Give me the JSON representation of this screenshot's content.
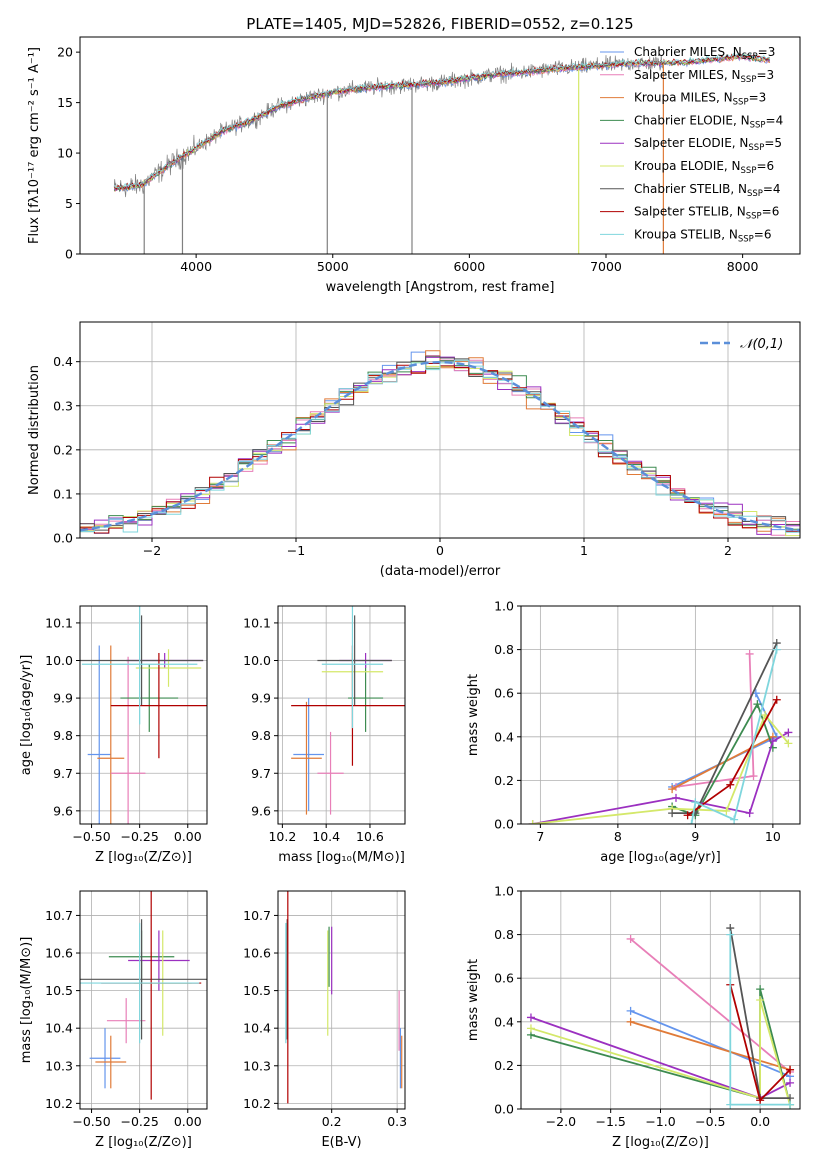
{
  "figure_title": "PLATE=1405, MJD=52826, FIBERID=0552, z=0.125",
  "colors": {
    "Chabrier MILES": "#6495ed",
    "Salpeter MILES": "#e87fb8",
    "Kroupa MILES": "#e07b39",
    "Chabrier ELODIE": "#3d8b50",
    "Salpeter ELODIE": "#9b30c0",
    "Kroupa ELODIE": "#d4e86a",
    "Chabrier STELIB": "#555555",
    "Salpeter STELIB": "#b00000",
    "Kroupa STELIB": "#7fd6dd",
    "data": "#808080",
    "normal": "#5b8fd9"
  },
  "legend_entries": [
    {
      "name": "Chabrier MILES",
      "text": "Chabrier MILES, N",
      "sub": "SSP",
      "tail": "=3"
    },
    {
      "name": "Salpeter MILES",
      "text": "Salpeter MILES, N",
      "sub": "SSP",
      "tail": "=3"
    },
    {
      "name": "Kroupa MILES",
      "text": "Kroupa MILES, N",
      "sub": "SSP",
      "tail": "=3"
    },
    {
      "name": "Chabrier ELODIE",
      "text": "Chabrier ELODIE, N",
      "sub": "SSP",
      "tail": "=4"
    },
    {
      "name": "Salpeter ELODIE",
      "text": "Salpeter ELODIE, N",
      "sub": "SSP",
      "tail": "=5"
    },
    {
      "name": "Kroupa ELODIE",
      "text": "Kroupa ELODIE, N",
      "sub": "SSP",
      "tail": "=6"
    },
    {
      "name": "Chabrier STELIB",
      "text": "Chabrier STELIB, N",
      "sub": "SSP",
      "tail": "=4"
    },
    {
      "name": "Salpeter STELIB",
      "text": "Salpeter STELIB, N",
      "sub": "SSP",
      "tail": "=6"
    },
    {
      "name": "Kroupa STELIB",
      "text": "Kroupa STELIB, N",
      "sub": "SSP",
      "tail": "=6"
    }
  ],
  "chart_data": [
    {
      "id": "spectrum",
      "type": "line",
      "xlabel": "wavelength [Angstrom, rest frame]",
      "ylabel": "Flux [fλ10⁻¹⁷ erg cm⁻² s⁻¹ A⁻¹]",
      "xlim": [
        3150,
        8420
      ],
      "ylim": [
        0,
        21.5
      ],
      "xticks": [
        4000,
        5000,
        6000,
        7000,
        8000
      ],
      "yticks": [
        0,
        5,
        10,
        15,
        20
      ],
      "continuum": [
        [
          3400,
          6.5
        ],
        [
          3600,
          6.8
        ],
        [
          3800,
          8.8
        ],
        [
          4000,
          10.5
        ],
        [
          4200,
          12.2
        ],
        [
          4400,
          13.2
        ],
        [
          4600,
          14.6
        ],
        [
          4800,
          15.4
        ],
        [
          5000,
          16.0
        ],
        [
          5200,
          16.4
        ],
        [
          5400,
          16.6
        ],
        [
          5600,
          16.8
        ],
        [
          5800,
          17.0
        ],
        [
          6000,
          17.4
        ],
        [
          6200,
          17.8
        ],
        [
          6400,
          18.0
        ],
        [
          6600,
          18.3
        ],
        [
          6800,
          18.5
        ],
        [
          7000,
          18.7
        ],
        [
          7200,
          18.9
        ],
        [
          7400,
          18.9
        ],
        [
          7600,
          19.0
        ],
        [
          7800,
          19.3
        ],
        [
          8000,
          19.6
        ],
        [
          8200,
          19.2
        ]
      ],
      "data_range": [
        3400,
        7420
      ],
      "models_range": [
        3400,
        8200
      ],
      "grid": false,
      "legend": "upper right"
    },
    {
      "id": "residuals",
      "type": "histogram",
      "xlabel": "(data-model)/error",
      "ylabel": "Normed distribution",
      "xlim": [
        -2.5,
        2.5
      ],
      "ylim": [
        0,
        0.49
      ],
      "xticks": [
        -2,
        -1,
        0,
        1,
        2
      ],
      "yticks": [
        0,
        0.1,
        0.2,
        0.3,
        0.4
      ],
      "bin_width": 0.1,
      "normal_label": "𝒩(0,1)",
      "grid": true,
      "legend": "upper right"
    },
    {
      "id": "age_vs_Z",
      "type": "errorbar",
      "xlabel": "Z [log₁₀(Z/Z⊙)]",
      "ylabel": "age  [log₁₀(age/yr)]",
      "xlim": [
        -0.56,
        0.1
      ],
      "ylim": [
        9.565,
        10.145
      ],
      "xticks": [
        -0.5,
        -0.25,
        0.0
      ],
      "yticks": [
        9.6,
        9.7,
        9.8,
        9.9,
        10.0,
        10.1
      ],
      "points": [
        {
          "series": "Chabrier MILES",
          "x": -0.46,
          "xerr": 0.06,
          "y": 9.75,
          "yerr": 0.29
        },
        {
          "series": "Kroupa MILES",
          "x": -0.4,
          "xerr": 0.07,
          "y": 9.74,
          "yerr": 0.3
        },
        {
          "series": "Salpeter MILES",
          "x": -0.31,
          "xerr": 0.09,
          "y": 9.7,
          "yerr": 0.31
        },
        {
          "series": "Chabrier ELODIE",
          "x": -0.2,
          "xerr": 0.15,
          "y": 9.9,
          "yerr": 0.09
        },
        {
          "series": "Salpeter ELODIE",
          "x": -0.12,
          "xerr": 0.2,
          "y": 10.0,
          "yerr": 0.02
        },
        {
          "series": "Kroupa ELODIE",
          "x": -0.1,
          "xerr": 0.17,
          "y": 9.98,
          "yerr": 0.05
        },
        {
          "series": "Chabrier STELIB",
          "x": -0.24,
          "xerr": 0.32,
          "y": 10.0,
          "yerr": 0.12
        },
        {
          "series": "Salpeter STELIB",
          "x": -0.15,
          "xerr": 0.25,
          "y": 9.88,
          "yerr": 0.14
        },
        {
          "series": "Kroupa STELIB",
          "x": -0.25,
          "xerr": 0.3,
          "y": 9.99,
          "yerr": 0.16
        }
      ],
      "grid": true
    },
    {
      "id": "age_vs_mass",
      "type": "errorbar",
      "xlabel": "mass [log₁₀(M/M⊙)]",
      "ylabel": "",
      "xlim": [
        10.18,
        10.76
      ],
      "ylim": [
        9.565,
        10.145
      ],
      "xticks": [
        10.2,
        10.4,
        10.6
      ],
      "yticks": [
        9.6,
        9.7,
        9.8,
        9.9,
        10.0,
        10.1
      ],
      "points": [
        {
          "series": "Chabrier MILES",
          "x": 10.32,
          "xerr": 0.07,
          "y": 9.75,
          "yerr": 0.15
        },
        {
          "series": "Kroupa MILES",
          "x": 10.31,
          "xerr": 0.07,
          "y": 9.74,
          "yerr": 0.15
        },
        {
          "series": "Salpeter MILES",
          "x": 10.42,
          "xerr": 0.06,
          "y": 9.7,
          "yerr": 0.11
        },
        {
          "series": "Chabrier ELODIE",
          "x": 10.58,
          "xerr": 0.08,
          "y": 9.9,
          "yerr": 0.09
        },
        {
          "series": "Salpeter ELODIE",
          "x": 10.58,
          "xerr": 0.12,
          "y": 10.0,
          "yerr": 0.02
        },
        {
          "series": "Kroupa ELODIE",
          "x": 10.52,
          "xerr": 0.14,
          "y": 9.97,
          "yerr": 0.05
        },
        {
          "series": "Chabrier STELIB",
          "x": 10.53,
          "xerr": 0.17,
          "y": 10.0,
          "yerr": 0.12
        },
        {
          "series": "Salpeter STELIB",
          "x": 10.52,
          "xerr": 0.28,
          "y": 9.88,
          "yerr": 0.16
        },
        {
          "series": "Kroupa STELIB",
          "x": 10.52,
          "xerr": 0.14,
          "y": 9.99,
          "yerr": 0.17
        }
      ],
      "grid": true
    },
    {
      "id": "weight_vs_age",
      "type": "line",
      "xlabel": "age  [log₁₀(age/yr)]",
      "ylabel": "mass weight",
      "xlim": [
        6.75,
        10.35
      ],
      "ylim": [
        0,
        1.0
      ],
      "xticks": [
        7,
        8,
        9,
        10
      ],
      "yticks": [
        0,
        0.2,
        0.4,
        0.6,
        0.8,
        1.0
      ],
      "series": [
        {
          "name": "Chabrier MILES",
          "points": [
            [
              8.7,
              0.17
            ],
            [
              10.05,
              0.4
            ],
            [
              9.78,
              0.6
            ]
          ]
        },
        {
          "name": "Salpeter MILES",
          "points": [
            [
              9.7,
              0.78
            ],
            [
              9.75,
              0.22
            ],
            [
              8.75,
              0.17
            ]
          ]
        },
        {
          "name": "Kroupa MILES",
          "points": [
            [
              8.7,
              0.16
            ],
            [
              10.0,
              0.4
            ]
          ]
        },
        {
          "name": "Chabrier ELODIE",
          "points": [
            [
              8.7,
              0.08
            ],
            [
              9.0,
              0.04
            ],
            [
              9.8,
              0.55
            ],
            [
              10.0,
              0.35
            ]
          ]
        },
        {
          "name": "Salpeter ELODIE",
          "points": [
            [
              6.9,
              0.0
            ],
            [
              8.75,
              0.12
            ],
            [
              9.7,
              0.05
            ],
            [
              10.0,
              0.38
            ],
            [
              10.2,
              0.42
            ]
          ]
        },
        {
          "name": "Kroupa ELODIE",
          "points": [
            [
              6.9,
              0.0
            ],
            [
              8.7,
              0.07
            ],
            [
              9.4,
              0.06
            ],
            [
              9.9,
              0.5
            ],
            [
              10.2,
              0.37
            ]
          ]
        },
        {
          "name": "Chabrier STELIB",
          "points": [
            [
              8.7,
              0.05
            ],
            [
              9.0,
              0.05
            ],
            [
              10.05,
              0.83
            ]
          ]
        },
        {
          "name": "Salpeter STELIB",
          "points": [
            [
              8.9,
              0.04
            ],
            [
              9.45,
              0.18
            ],
            [
              10.05,
              0.57
            ]
          ]
        },
        {
          "name": "Kroupa STELIB",
          "points": [
            [
              8.95,
              0.0
            ],
            [
              9.0,
              0.1
            ],
            [
              9.5,
              0.02
            ],
            [
              10.05,
              0.8
            ]
          ]
        }
      ],
      "grid": true
    },
    {
      "id": "mass_vs_Z",
      "type": "errorbar",
      "xlabel": "Z [log₁₀(Z/Z⊙)]",
      "ylabel": "mass [log₁₀(M/M⊙)]",
      "xlim": [
        -0.56,
        0.1
      ],
      "ylim": [
        10.185,
        10.765
      ],
      "xticks": [
        -0.5,
        -0.25,
        0.0
      ],
      "yticks": [
        10.2,
        10.3,
        10.4,
        10.5,
        10.6,
        10.7
      ],
      "points": [
        {
          "series": "Chabrier MILES",
          "x": -0.43,
          "xerr": 0.08,
          "y": 10.32,
          "yerr": 0.08
        },
        {
          "series": "Kroupa MILES",
          "x": -0.4,
          "xerr": 0.08,
          "y": 10.31,
          "yerr": 0.07
        },
        {
          "series": "Salpeter MILES",
          "x": -0.32,
          "xerr": 0.1,
          "y": 10.42,
          "yerr": 0.06
        },
        {
          "series": "Chabrier ELODIE",
          "x": -0.24,
          "xerr": 0.17,
          "y": 10.59,
          "yerr": 0.07
        },
        {
          "series": "Salpeter ELODIE",
          "x": -0.15,
          "xerr": 0.16,
          "y": 10.58,
          "yerr": 0.08
        },
        {
          "series": "Kroupa ELODIE",
          "x": -0.13,
          "xerr": 0.15,
          "y": 10.52,
          "yerr": 0.14
        },
        {
          "series": "Chabrier STELIB",
          "x": -0.24,
          "xerr": 0.34,
          "y": 10.53,
          "yerr": 0.16
        },
        {
          "series": "Salpeter STELIB",
          "x": -0.19,
          "xerr": 0.26,
          "y": 10.52,
          "yerr": 0.31
        },
        {
          "series": "Kroupa STELIB",
          "x": -0.25,
          "xerr": 0.31,
          "y": 10.52,
          "yerr": 0.16
        }
      ],
      "grid": true
    },
    {
      "id": "mass_vs_ebv",
      "type": "errorbar",
      "xlabel": "E(B-V)",
      "ylabel": "",
      "xlim": [
        0.118,
        0.312
      ],
      "ylim": [
        10.185,
        10.765
      ],
      "xticks": [
        0.2,
        0.3
      ],
      "yticks": [
        10.2,
        10.3,
        10.4,
        10.5,
        10.6,
        10.7
      ],
      "points": [
        {
          "series": "Chabrier MILES",
          "x": 0.305,
          "xerr": 0,
          "y": 10.32,
          "yerr": 0.08
        },
        {
          "series": "Kroupa MILES",
          "x": 0.307,
          "xerr": 0,
          "y": 10.31,
          "yerr": 0.07
        },
        {
          "series": "Salpeter MILES",
          "x": 0.303,
          "xerr": 0,
          "y": 10.42,
          "yerr": 0.08
        },
        {
          "series": "Chabrier ELODIE",
          "x": 0.196,
          "xerr": 0,
          "y": 10.59,
          "yerr": 0.08
        },
        {
          "series": "Salpeter ELODIE",
          "x": 0.2,
          "xerr": 0,
          "y": 10.58,
          "yerr": 0.09
        },
        {
          "series": "Kroupa ELODIE",
          "x": 0.194,
          "xerr": 0,
          "y": 10.52,
          "yerr": 0.14
        },
        {
          "series": "Chabrier STELIB",
          "x": 0.132,
          "xerr": 0,
          "y": 10.53,
          "yerr": 0.16
        },
        {
          "series": "Salpeter STELIB",
          "x": 0.133,
          "xerr": 0,
          "y": 10.52,
          "yerr": 0.32
        },
        {
          "series": "Kroupa STELIB",
          "x": 0.13,
          "xerr": 0,
          "y": 10.52,
          "yerr": 0.16
        }
      ],
      "grid": true
    },
    {
      "id": "weight_vs_Z",
      "type": "line",
      "xlabel": "Z [log₁₀(Z/Z⊙)]",
      "ylabel": "mass weight",
      "xlim": [
        -2.4,
        0.4
      ],
      "ylim": [
        0,
        1.0
      ],
      "xticks": [
        -2.0,
        -1.5,
        -1.0,
        -0.5,
        0.0
      ],
      "yticks": [
        0,
        0.2,
        0.4,
        0.6,
        0.8,
        1.0
      ],
      "series": [
        {
          "name": "Chabrier MILES",
          "points": [
            [
              -1.3,
              0.45
            ],
            [
              0.3,
              0.15
            ]
          ]
        },
        {
          "name": "Salpeter MILES",
          "points": [
            [
              -1.3,
              0.78
            ],
            [
              0.3,
              0.17
            ]
          ]
        },
        {
          "name": "Kroupa MILES",
          "points": [
            [
              -1.3,
              0.4
            ],
            [
              0.3,
              0.18
            ]
          ]
        },
        {
          "name": "Chabrier ELODIE",
          "points": [
            [
              -2.3,
              0.34
            ],
            [
              0.0,
              0.05
            ],
            [
              0.0,
              0.55
            ],
            [
              0.3,
              0.02
            ]
          ]
        },
        {
          "name": "Salpeter ELODIE",
          "points": [
            [
              -2.3,
              0.42
            ],
            [
              0.0,
              0.05
            ],
            [
              0.3,
              0.12
            ]
          ]
        },
        {
          "name": "Kroupa ELODIE",
          "points": [
            [
              -2.3,
              0.37
            ],
            [
              0.0,
              0.05
            ],
            [
              0.0,
              0.5
            ],
            [
              0.3,
              0.02
            ]
          ]
        },
        {
          "name": "Chabrier STELIB",
          "points": [
            [
              -0.3,
              0.83
            ],
            [
              0.0,
              0.05
            ],
            [
              0.3,
              0.05
            ]
          ]
        },
        {
          "name": "Salpeter STELIB",
          "points": [
            [
              -0.3,
              0.57
            ],
            [
              0.0,
              0.04
            ],
            [
              0.3,
              0.18
            ]
          ]
        },
        {
          "name": "Kroupa STELIB",
          "points": [
            [
              -0.3,
              0.8
            ],
            [
              -0.3,
              0.02
            ],
            [
              0.3,
              0.02
            ]
          ]
        }
      ],
      "grid": true
    }
  ]
}
